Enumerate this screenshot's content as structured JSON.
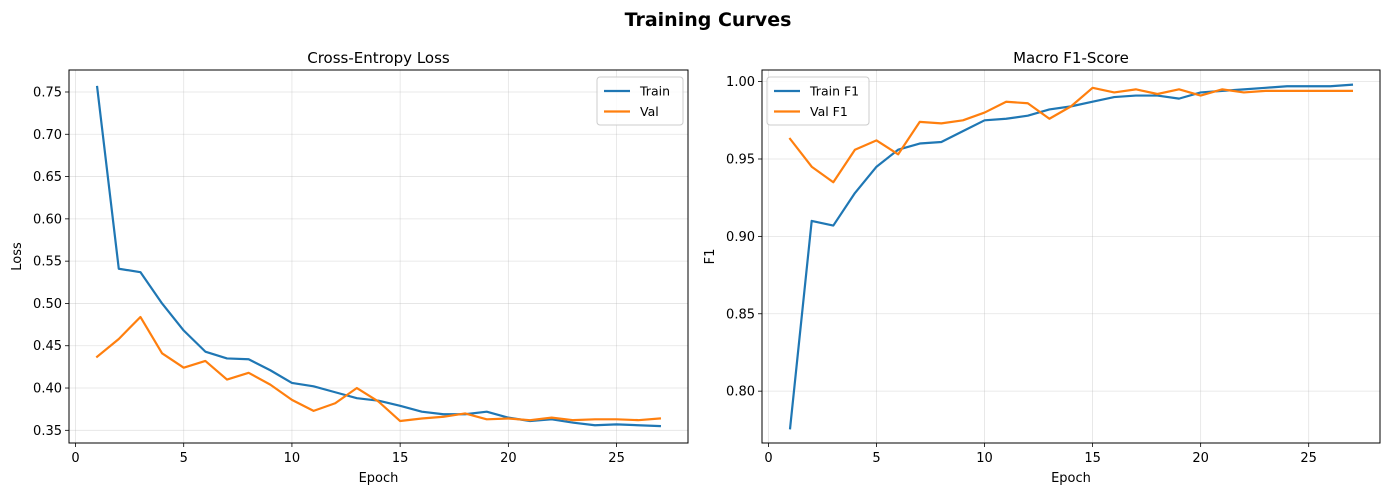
{
  "figure": {
    "title": "Training Curves"
  },
  "chart_data": [
    {
      "type": "line",
      "title": "Cross-Entropy Loss",
      "xlabel": "Epoch",
      "ylabel": "Loss",
      "xlim": [
        -0.3,
        28.3
      ],
      "ylim": [
        0.335,
        0.776
      ],
      "xticks": [
        0,
        5,
        10,
        15,
        20,
        25
      ],
      "yticks": [
        0.35,
        0.4,
        0.45,
        0.5,
        0.55,
        0.6,
        0.65,
        0.7,
        0.75
      ],
      "ytick_labels": [
        "0.35",
        "0.40",
        "0.45",
        "0.50",
        "0.55",
        "0.60",
        "0.65",
        "0.70",
        "0.75"
      ],
      "grid": true,
      "legend_position": "top-right",
      "x": [
        1,
        2,
        3,
        4,
        5,
        6,
        7,
        8,
        9,
        10,
        11,
        12,
        13,
        14,
        15,
        16,
        17,
        18,
        19,
        20,
        21,
        22,
        23,
        24,
        25,
        26,
        27
      ],
      "series": [
        {
          "name": "Train",
          "color": "#1f77b4",
          "values": [
            0.756,
            0.541,
            0.537,
            0.5,
            0.468,
            0.443,
            0.435,
            0.434,
            0.421,
            0.406,
            0.402,
            0.395,
            0.388,
            0.385,
            0.379,
            0.372,
            0.369,
            0.369,
            0.372,
            0.365,
            0.361,
            0.363,
            0.359,
            0.356,
            0.357,
            0.356,
            0.355
          ]
        },
        {
          "name": "Val",
          "color": "#ff7f0e",
          "values": [
            0.437,
            0.458,
            0.484,
            0.441,
            0.424,
            0.432,
            0.41,
            0.418,
            0.404,
            0.386,
            0.373,
            0.382,
            0.4,
            0.384,
            0.361,
            0.364,
            0.366,
            0.37,
            0.363,
            0.364,
            0.362,
            0.365,
            0.362,
            0.363,
            0.363,
            0.362,
            0.364
          ]
        }
      ]
    },
    {
      "type": "line",
      "title": "Macro F1-Score",
      "xlabel": "Epoch",
      "ylabel": "F1",
      "xlim": [
        -0.3,
        28.3
      ],
      "ylim": [
        0.7665,
        1.0075
      ],
      "xticks": [
        0,
        5,
        10,
        15,
        20,
        25
      ],
      "yticks": [
        0.8,
        0.85,
        0.9,
        0.95,
        1.0
      ],
      "ytick_labels": [
        "0.80",
        "0.85",
        "0.90",
        "0.95",
        "1.00"
      ],
      "grid": true,
      "legend_position": "top-left",
      "x": [
        1,
        2,
        3,
        4,
        5,
        6,
        7,
        8,
        9,
        10,
        11,
        12,
        13,
        14,
        15,
        16,
        17,
        18,
        19,
        20,
        21,
        22,
        23,
        24,
        25,
        26,
        27
      ],
      "series": [
        {
          "name": "Train F1",
          "color": "#1f77b4",
          "values": [
            0.776,
            0.91,
            0.907,
            0.928,
            0.945,
            0.956,
            0.96,
            0.961,
            0.968,
            0.975,
            0.976,
            0.978,
            0.982,
            0.984,
            0.987,
            0.99,
            0.991,
            0.991,
            0.989,
            0.993,
            0.994,
            0.995,
            0.996,
            0.997,
            0.997,
            0.997,
            0.998
          ]
        },
        {
          "name": "Val F1",
          "color": "#ff7f0e",
          "values": [
            0.963,
            0.945,
            0.935,
            0.956,
            0.962,
            0.953,
            0.974,
            0.973,
            0.975,
            0.98,
            0.987,
            0.986,
            0.976,
            0.984,
            0.996,
            0.993,
            0.995,
            0.992,
            0.995,
            0.991,
            0.995,
            0.993,
            0.994,
            0.994,
            0.994,
            0.994,
            0.994
          ]
        }
      ]
    }
  ]
}
